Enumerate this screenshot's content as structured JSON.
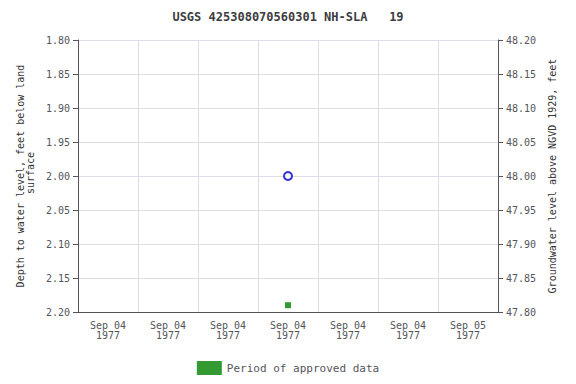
{
  "chart_data": {
    "type": "scatter",
    "title": "USGS 425308070560301 NH-SLA   19",
    "ylabel": "Depth to water level, feet below land\n surface",
    "y2label": "Groundwater level above NGVD 1929, feet",
    "categories": [
      "Sep 04\n1977",
      "Sep 04\n1977",
      "Sep 04\n1977",
      "Sep 04\n1977",
      "Sep 04\n1977",
      "Sep 04\n1977",
      "Sep 05\n1977"
    ],
    "series": [
      {
        "color": "#0000cc",
        "marker": "open_circle",
        "values": [
          null,
          null,
          null,
          2.0,
          null,
          null,
          null
        ]
      },
      {
        "name": "Period of approved data",
        "color": "#008000",
        "marker": "square",
        "values": [
          null,
          null,
          null,
          2.19,
          null,
          null,
          null
        ]
      }
    ],
    "ylim": [
      2.2,
      1.8
    ],
    "yticks": [
      {
        "value": 1.8,
        "label": "1.80"
      },
      {
        "value": 1.85,
        "label": "1.85"
      },
      {
        "value": 1.9,
        "label": "1.90"
      },
      {
        "value": 1.95,
        "label": "1.95"
      },
      {
        "value": 2.0,
        "label": "2.00"
      },
      {
        "value": 2.05,
        "label": "2.05"
      },
      {
        "value": 2.1,
        "label": "2.10"
      },
      {
        "value": 2.15,
        "label": "2.15"
      },
      {
        "value": 2.2,
        "label": "2.20"
      }
    ],
    "y2lim": [
      47.8,
      48.2
    ],
    "y2ticks": [
      {
        "value": 47.8,
        "label": "47.80"
      },
      {
        "value": 47.85,
        "label": "47.85"
      },
      {
        "value": 47.9,
        "label": "47.90"
      },
      {
        "value": 47.95,
        "label": "47.95"
      },
      {
        "value": 48.0,
        "label": "48.00"
      },
      {
        "value": 48.05,
        "label": "48.05"
      },
      {
        "value": 48.1,
        "label": "48.10"
      },
      {
        "value": 48.15,
        "label": "48.15"
      },
      {
        "value": 48.2,
        "label": "48.20"
      }
    ],
    "grid": true,
    "legend": "bottom"
  }
}
